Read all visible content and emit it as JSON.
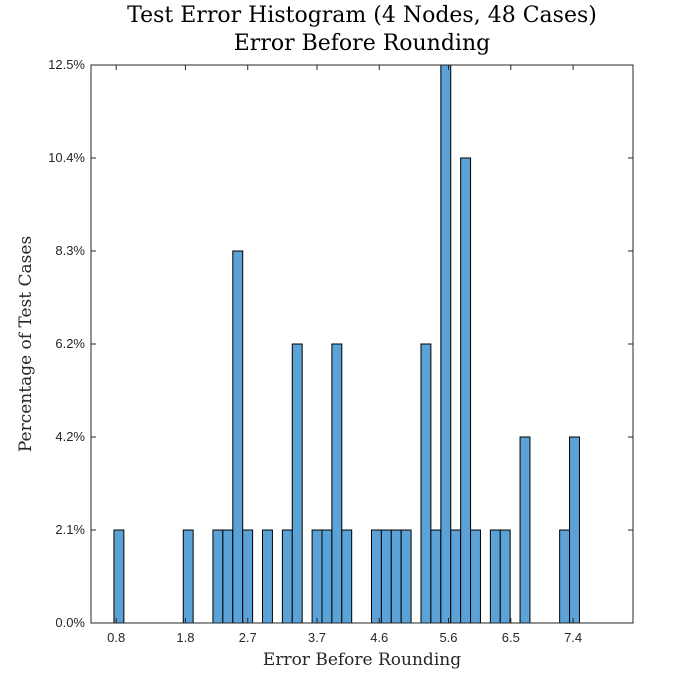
{
  "chart_data": {
    "type": "bar",
    "title": "Test Error Histogram (4 Nodes, 48 Cases)",
    "subtitle": "Error Before Rounding",
    "xlabel": "Error Before Rounding",
    "ylabel": "Percentage of Test Cases",
    "xlim": [
      0.436,
      8.265
    ],
    "ylim": [
      0,
      12.5
    ],
    "grid": false,
    "legend": "none",
    "bar_color": "#5ba3d6",
    "bin_width": 0.1431,
    "xticks": [
      {
        "value": 0.8,
        "label": "0.8"
      },
      {
        "value": 1.8,
        "label": "1.8"
      },
      {
        "value": 2.7,
        "label": "2.7"
      },
      {
        "value": 3.7,
        "label": "3.7"
      },
      {
        "value": 4.6,
        "label": "4.6"
      },
      {
        "value": 5.6,
        "label": "5.6"
      },
      {
        "value": 6.5,
        "label": "6.5"
      },
      {
        "value": 7.4,
        "label": "7.4"
      }
    ],
    "yticks": [
      {
        "value": 0,
        "label": "0.0%"
      },
      {
        "value": 2.083,
        "label": "2.1%"
      },
      {
        "value": 4.167,
        "label": "4.2%"
      },
      {
        "value": 6.25,
        "label": "6.2%"
      },
      {
        "value": 8.333,
        "label": "8.3%"
      },
      {
        "value": 10.417,
        "label": "10.4%"
      },
      {
        "value": 12.5,
        "label": "12.5%"
      }
    ],
    "bins": [
      {
        "x": 0.839,
        "value": 2.083
      },
      {
        "x": 1.84,
        "value": 2.083
      },
      {
        "x": 2.269,
        "value": 2.083
      },
      {
        "x": 2.412,
        "value": 2.083
      },
      {
        "x": 2.556,
        "value": 8.333
      },
      {
        "x": 2.699,
        "value": 2.083
      },
      {
        "x": 2.985,
        "value": 2.083
      },
      {
        "x": 3.272,
        "value": 2.083
      },
      {
        "x": 3.415,
        "value": 6.25
      },
      {
        "x": 3.701,
        "value": 2.083
      },
      {
        "x": 3.844,
        "value": 2.083
      },
      {
        "x": 3.987,
        "value": 6.25
      },
      {
        "x": 4.13,
        "value": 2.083
      },
      {
        "x": 4.559,
        "value": 2.083
      },
      {
        "x": 4.702,
        "value": 2.083
      },
      {
        "x": 4.845,
        "value": 2.083
      },
      {
        "x": 4.988,
        "value": 2.083
      },
      {
        "x": 5.274,
        "value": 6.25
      },
      {
        "x": 5.417,
        "value": 2.083
      },
      {
        "x": 5.561,
        "value": 12.5
      },
      {
        "x": 5.704,
        "value": 2.083
      },
      {
        "x": 5.847,
        "value": 10.417
      },
      {
        "x": 5.99,
        "value": 2.083
      },
      {
        "x": 6.276,
        "value": 2.083
      },
      {
        "x": 6.419,
        "value": 2.083
      },
      {
        "x": 6.705,
        "value": 4.167
      },
      {
        "x": 7.277,
        "value": 2.083
      },
      {
        "x": 7.42,
        "value": 4.167
      }
    ]
  }
}
